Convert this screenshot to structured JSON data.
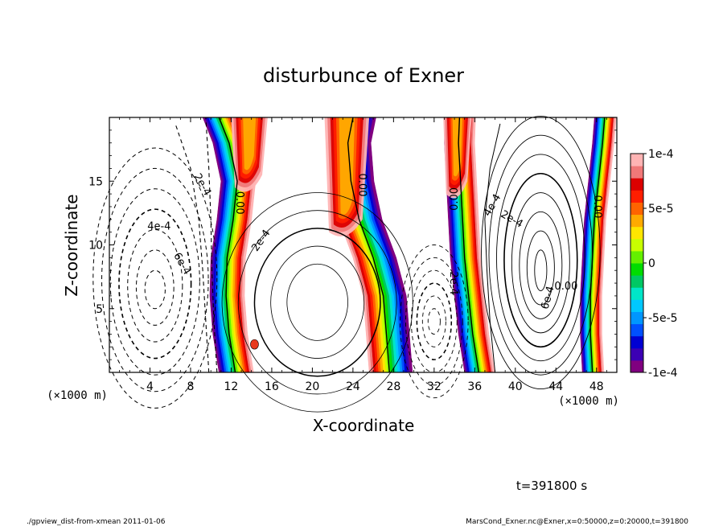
{
  "chart_data": {
    "type": "heatmap",
    "title": "disturbunce of Exner",
    "xlabel": "X-coordinate",
    "ylabel": "Z-coordinate",
    "x_unit": "(×1000 m)",
    "y_unit": "(×1000 m)",
    "xlim": [
      0,
      50
    ],
    "ylim": [
      0,
      20
    ],
    "x_ticks": [
      4,
      8,
      12,
      16,
      20,
      24,
      28,
      32,
      36,
      40,
      44,
      48
    ],
    "y_ticks": [
      5,
      10,
      15
    ],
    "colorbar": {
      "min": -0.0001,
      "max": 0.0001,
      "tick_labels": [
        "1e-4",
        "5e-5",
        "0",
        "-5e-5",
        "-1e-4"
      ],
      "tick_values": [
        0.0001,
        5e-05,
        0,
        -5e-05,
        -0.0001
      ],
      "colors": [
        "#800080",
        "#3c00b4",
        "#0000d2",
        "#0050ff",
        "#0096ff",
        "#00c8ff",
        "#00e6c8",
        "#00c864",
        "#00dc00",
        "#64f000",
        "#c8ff00",
        "#ffe600",
        "#ffaa00",
        "#ff6400",
        "#ff1e00",
        "#dc0000",
        "#f07878",
        "#ffb4b4"
      ]
    },
    "contour_labels": [
      "2e-4",
      "4e-4",
      "6e-4",
      "2e-4",
      "0.00",
      "0.00",
      "0.00",
      "0.00",
      "2e-4",
      "4e-4",
      "2e-4",
      "6e-4",
      "0.00"
    ],
    "time_label": "t=391800 s",
    "footer_left": "./gpview_dist-from-xmean  2011-01-06",
    "footer_right": "MarsCond_Exner.nc@Exner,x=0:50000,z=0:20000,t=391800"
  }
}
